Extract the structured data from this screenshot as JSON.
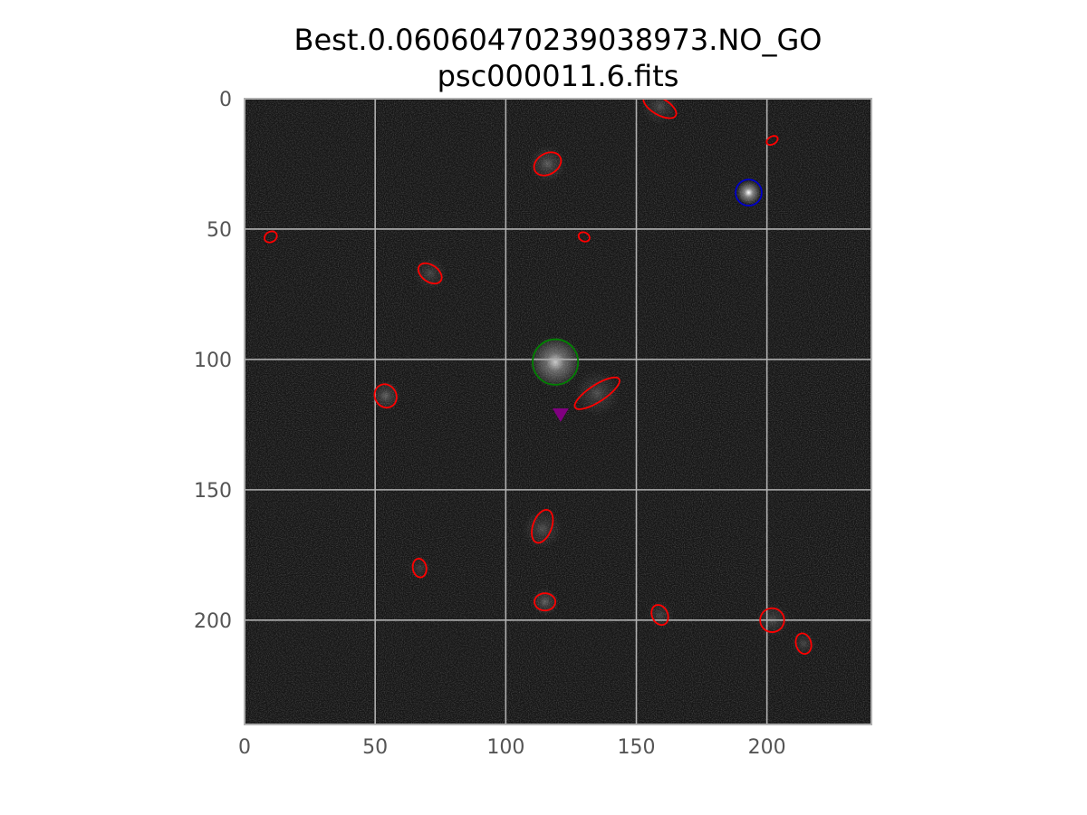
{
  "chart_data": {
    "type": "scatter",
    "title": "Best.0.0606047023903897​3.NO_GO",
    "subtitle": "psc000011.6.fits",
    "xlabel": "",
    "ylabel": "",
    "xlim": [
      0,
      240
    ],
    "ylim": [
      240,
      0
    ],
    "y_inverted": true,
    "grid": true,
    "xticks": [
      0,
      50,
      100,
      150,
      200
    ],
    "yticks": [
      0,
      50,
      100,
      150,
      200
    ],
    "xtick_labels": [
      "0",
      "50",
      "100",
      "150",
      "200"
    ],
    "ytick_labels": [
      "0",
      "50",
      "100",
      "150",
      "200"
    ],
    "background": "#151515",
    "grid_color": "#b0b0b0",
    "stars": [
      {
        "x": 193,
        "y": 36,
        "peak": 1.0,
        "spread": 1.6
      },
      {
        "x": 119,
        "y": 101,
        "peak": 0.75,
        "spread": 3.4
      },
      {
        "x": 54,
        "y": 114,
        "peak": 0.3,
        "spread": 2.0
      },
      {
        "x": 115,
        "y": 193,
        "peak": 0.3,
        "spread": 1.8
      },
      {
        "x": 116,
        "y": 25,
        "peak": 0.28,
        "spread": 2.4
      },
      {
        "x": 135,
        "y": 113,
        "peak": 0.22,
        "spread": 3.0
      },
      {
        "x": 114,
        "y": 165,
        "peak": 0.22,
        "spread": 2.6
      },
      {
        "x": 71,
        "y": 67,
        "peak": 0.18,
        "spread": 2.2
      },
      {
        "x": 202,
        "y": 200,
        "peak": 0.2,
        "spread": 2.2
      },
      {
        "x": 159,
        "y": 198,
        "peak": 0.18,
        "spread": 1.8
      },
      {
        "x": 214,
        "y": 209,
        "peak": 0.18,
        "spread": 1.6
      },
      {
        "x": 159,
        "y": 3,
        "peak": 0.2,
        "spread": 2.4
      },
      {
        "x": 67,
        "y": 180,
        "peak": 0.14,
        "spread": 1.6
      }
    ],
    "series": [
      {
        "marker": "ellipse",
        "color": "#ff0000",
        "points": [
          {
            "x": 159,
            "y": 3,
            "a": 7,
            "b": 3.2,
            "angle": 30
          },
          {
            "x": 202,
            "y": 16,
            "a": 2.3,
            "b": 1.5,
            "angle": -30
          },
          {
            "x": 116,
            "y": 25,
            "a": 5.5,
            "b": 4,
            "angle": -30
          },
          {
            "x": 10,
            "y": 53,
            "a": 2.5,
            "b": 2,
            "angle": -30
          },
          {
            "x": 130,
            "y": 53,
            "a": 2.2,
            "b": 1.7,
            "angle": 25
          },
          {
            "x": 71,
            "y": 67,
            "a": 5,
            "b": 3.2,
            "angle": 35
          },
          {
            "x": 54,
            "y": 114,
            "a": 4.6,
            "b": 4.1,
            "angle": 60
          },
          {
            "x": 135,
            "y": 113,
            "a": 10,
            "b": 3.2,
            "angle": -33
          },
          {
            "x": 114,
            "y": 164,
            "a": 6.6,
            "b": 3.6,
            "angle": -70
          },
          {
            "x": 67,
            "y": 180,
            "a": 3.6,
            "b": 2.6,
            "angle": 80
          },
          {
            "x": 115,
            "y": 193,
            "a": 4,
            "b": 3.3,
            "angle": 0
          },
          {
            "x": 159,
            "y": 198,
            "a": 4,
            "b": 3,
            "angle": 65
          },
          {
            "x": 202,
            "y": 200,
            "a": 4.6,
            "b": 4.6,
            "angle": 0
          },
          {
            "x": 214,
            "y": 209,
            "a": 4,
            "b": 2.9,
            "angle": 75
          }
        ]
      },
      {
        "marker": "circle",
        "color": "#0000cc",
        "points": [
          {
            "x": 193,
            "y": 36,
            "r": 5
          }
        ]
      },
      {
        "marker": "circle",
        "color": "#008000",
        "points": [
          {
            "x": 119,
            "y": 101,
            "r": 8.7
          }
        ]
      },
      {
        "marker": "triangle-down",
        "color": "#800080",
        "points": [
          {
            "x": 121,
            "y": 121
          }
        ]
      }
    ]
  }
}
